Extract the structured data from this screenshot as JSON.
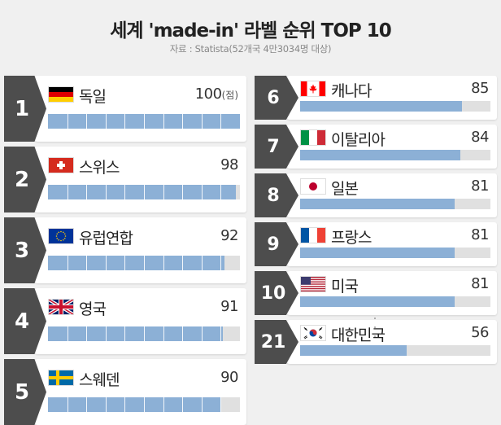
{
  "title": "세계 'made-in' 라벨 순위 TOP 10",
  "subtitle": "자료 : Statista(52개국 4만3034명 대상)",
  "chart_data": {
    "type": "bar",
    "title": "세계 'made-in' 라벨 순위 TOP 10",
    "subtitle": "자료 : Statista(52개국 4만3034명 대상)",
    "unit": "(점)",
    "xlim": [
      0,
      100
    ],
    "ranks": [
      "1",
      "2",
      "3",
      "4",
      "5",
      "6",
      "7",
      "8",
      "9",
      "10",
      "21"
    ],
    "categories": [
      "독일",
      "스위스",
      "유럽연합",
      "영국",
      "스웨덴",
      "캐나다",
      "이탈리아",
      "일본",
      "프랑스",
      "미국",
      "대한민국"
    ],
    "values": [
      100,
      98,
      92,
      91,
      90,
      85,
      84,
      81,
      81,
      81,
      56
    ],
    "flags": [
      "germany",
      "switzerland",
      "eu",
      "uk",
      "sweden",
      "canada",
      "italy",
      "japan",
      "france",
      "usa",
      "korea"
    ],
    "bar_color": "#8cb0d6",
    "track_color": "#e0e0e0",
    "rank_color": "#4d4d4d"
  }
}
